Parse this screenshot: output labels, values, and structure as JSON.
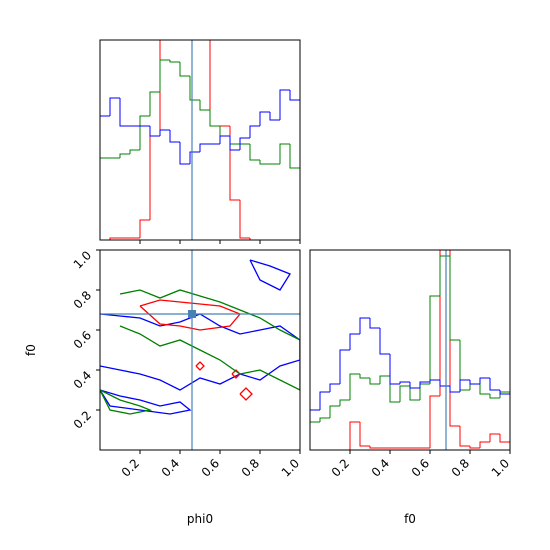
{
  "chart_data": [
    {
      "type": "histogram",
      "bins": [
        0,
        0.05,
        0.1,
        0.15,
        0.2,
        0.25,
        0.3,
        0.35,
        0.4,
        0.45,
        0.5,
        0.55,
        0.6,
        0.65,
        0.7,
        0.75,
        0.8,
        0.85,
        0.9,
        0.95,
        1.0
      ],
      "xlim": [
        0,
        1
      ],
      "ylim": [
        0,
        100
      ],
      "truth": 0.46,
      "series": [
        {
          "color": "#ff0000",
          "values": [
            0,
            1,
            1,
            1,
            10,
            52,
            105,
            105,
            105,
            105,
            105,
            57,
            57,
            20,
            1,
            0,
            0,
            0,
            0,
            0
          ]
        },
        {
          "color": "#008000",
          "values": [
            41,
            41,
            43,
            45,
            62,
            74,
            90,
            89,
            82,
            70,
            65,
            57,
            52,
            48,
            48,
            40,
            38,
            38,
            48,
            36
          ]
        },
        {
          "color": "#0000ff",
          "values": [
            62,
            71,
            57,
            57,
            57,
            52,
            55,
            49,
            38,
            44,
            48,
            48,
            52,
            45,
            51,
            57,
            64,
            60,
            75,
            70
          ]
        }
      ]
    },
    {
      "type": "contour",
      "xlabel": "phi0",
      "ylabel": "f0",
      "xlim": [
        0,
        1
      ],
      "ylim": [
        0,
        1
      ],
      "xticks": [
        0.2,
        0.4,
        0.6,
        0.8,
        {
          "value": 1,
          "label": "1.0"
        }
      ],
      "yticks": [
        0.2,
        0.4,
        0.6,
        0.8,
        {
          "value": 1,
          "label": "1.0"
        }
      ],
      "truth": [
        0.46,
        0.68
      ],
      "contours": [
        {
          "color": "#0000ff",
          "x": [
            0,
            0.1,
            0.2,
            0.3,
            0.4,
            0.5,
            0.6,
            0.7,
            0.8,
            0.9,
            1.0,
            1.0,
            0.9,
            0.8,
            0.7,
            0.6,
            0.5,
            0.4,
            0.3,
            0.2,
            0.1,
            0
          ],
          "y": [
            0.68,
            0.67,
            0.66,
            0.62,
            0.64,
            0.68,
            0.62,
            0.58,
            0.6,
            0.62,
            0.55,
            0.45,
            0.42,
            0.35,
            0.38,
            0.33,
            0.36,
            0.3,
            0.35,
            0.38,
            0.4,
            0.42
          ]
        },
        {
          "color": "#0000ff",
          "x": [
            0.75,
            0.85,
            0.95,
            0.9,
            0.8,
            0.75
          ],
          "y": [
            0.95,
            0.92,
            0.88,
            0.8,
            0.85,
            0.95
          ]
        },
        {
          "color": "#0000ff",
          "x": [
            0,
            0.1,
            0.2,
            0.3,
            0.4,
            0.45,
            0.35,
            0.2,
            0.05,
            0
          ],
          "y": [
            0.3,
            0.27,
            0.25,
            0.22,
            0.24,
            0.2,
            0.18,
            0.2,
            0.22,
            0.3
          ]
        },
        {
          "color": "#ff0000",
          "x": [
            0.2,
            0.3,
            0.4,
            0.5,
            0.6,
            0.7,
            0.65,
            0.5,
            0.4,
            0.3,
            0.2
          ],
          "y": [
            0.72,
            0.75,
            0.74,
            0.73,
            0.72,
            0.68,
            0.62,
            0.6,
            0.62,
            0.63,
            0.72
          ]
        },
        {
          "color": "#ff0000",
          "x": [
            0.66,
            0.68,
            0.7,
            0.68,
            0.66
          ],
          "y": [
            0.38,
            0.4,
            0.38,
            0.36,
            0.38
          ]
        },
        {
          "color": "#ff0000",
          "x": [
            0.7,
            0.73,
            0.76,
            0.73,
            0.7
          ],
          "y": [
            0.28,
            0.31,
            0.28,
            0.25,
            0.28
          ]
        },
        {
          "color": "#ff0000",
          "x": [
            0.48,
            0.5,
            0.52,
            0.5,
            0.48
          ],
          "y": [
            0.42,
            0.44,
            0.42,
            0.4,
            0.42
          ]
        },
        {
          "color": "#008000",
          "x": [
            0.1,
            0.2,
            0.3,
            0.4,
            0.5,
            0.6,
            0.7,
            0.8,
            0.9,
            1.0,
            1.0,
            0.9,
            0.8,
            0.7,
            0.6,
            0.5,
            0.4,
            0.3,
            0.2,
            0.1
          ],
          "y": [
            0.78,
            0.8,
            0.76,
            0.8,
            0.77,
            0.74,
            0.7,
            0.66,
            0.6,
            0.55,
            0.3,
            0.35,
            0.4,
            0.38,
            0.45,
            0.5,
            0.55,
            0.52,
            0.58,
            0.62
          ]
        },
        {
          "color": "#008000",
          "x": [
            0,
            0.1,
            0.2,
            0.25,
            0.15,
            0.05,
            0
          ],
          "y": [
            0.3,
            0.25,
            0.22,
            0.2,
            0.18,
            0.2,
            0.3
          ]
        }
      ]
    },
    {
      "type": "histogram",
      "xlabel": "f0",
      "bins": [
        0,
        0.05,
        0.1,
        0.15,
        0.2,
        0.25,
        0.3,
        0.35,
        0.4,
        0.45,
        0.5,
        0.55,
        0.6,
        0.65,
        0.7,
        0.75,
        0.8,
        0.85,
        0.9,
        0.95,
        1.0
      ],
      "xlim": [
        0,
        1
      ],
      "ylim": [
        0,
        100
      ],
      "truth": 0.68,
      "xticks": [
        0.2,
        0.4,
        0.6,
        0.8,
        {
          "value": 1,
          "label": "1.0"
        }
      ],
      "series": [
        {
          "color": "#ff0000",
          "values": [
            0,
            0,
            0,
            0,
            14,
            2,
            1,
            1,
            1,
            1,
            1,
            1,
            27,
            105,
            12,
            2,
            1,
            4,
            8,
            4
          ]
        },
        {
          "color": "#008000",
          "values": [
            14,
            16,
            22,
            25,
            38,
            36,
            33,
            37,
            24,
            32,
            25,
            33,
            77,
            97,
            55,
            30,
            33,
            28,
            26,
            29
          ]
        },
        {
          "color": "#0000ff",
          "values": [
            20,
            29,
            33,
            50,
            58,
            66,
            61,
            48,
            33,
            34,
            31,
            34,
            35,
            32,
            29,
            35,
            33,
            36,
            30,
            28
          ]
        }
      ]
    }
  ]
}
